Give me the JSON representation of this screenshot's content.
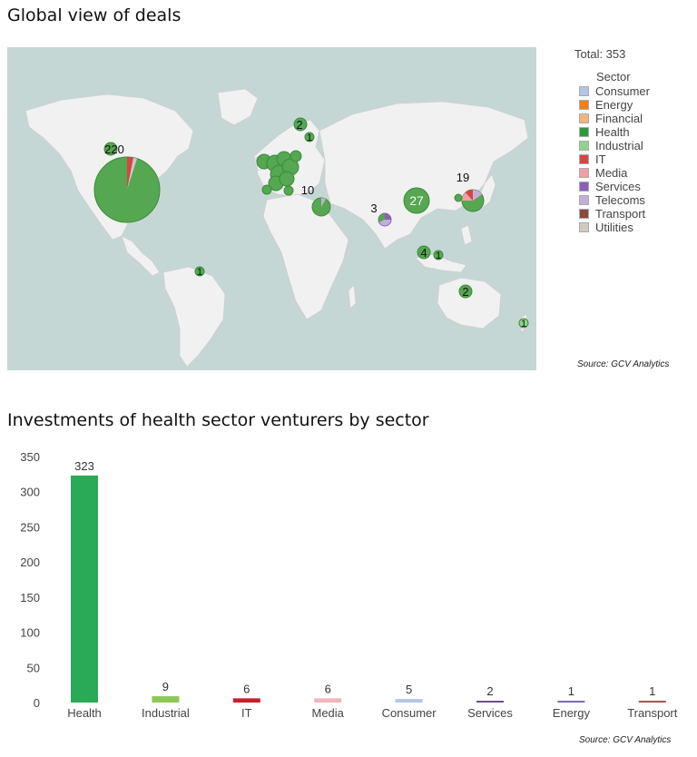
{
  "map": {
    "title": "Global view of deals",
    "total_label": "Total: 353",
    "source": "Source: GCV Analytics",
    "legend": {
      "title": "Sector",
      "items": [
        {
          "label": "Consumer",
          "color": "#b3c6e6"
        },
        {
          "label": "Energy",
          "color": "#f07f1e"
        },
        {
          "label": "Financial",
          "color": "#f2b47a"
        },
        {
          "label": "Health",
          "color": "#2e9a3a"
        },
        {
          "label": "Industrial",
          "color": "#8fd48a"
        },
        {
          "label": "IT",
          "color": "#d94343"
        },
        {
          "label": "Media",
          "color": "#f0a0a5"
        },
        {
          "label": "Services",
          "color": "#8d5fb8"
        },
        {
          "label": "Telecoms",
          "color": "#c3afd6"
        },
        {
          "label": "Transport",
          "color": "#8a4a3c"
        },
        {
          "label": "Utilities",
          "color": "#cfc9c1"
        }
      ]
    },
    "bubbles": [
      {
        "label": "220",
        "count": 220,
        "region": "North America"
      },
      {
        "label": "2",
        "count": 2,
        "region": "Scandinavia"
      },
      {
        "label": "1",
        "count": 1,
        "region": "Finland"
      },
      {
        "label": "10",
        "count": 10,
        "region": "Middle East"
      },
      {
        "label": "27",
        "count": 27,
        "region": "China"
      },
      {
        "label": "3",
        "count": 3,
        "region": "India"
      },
      {
        "label": "19",
        "count": 19,
        "region": "Japan / Korea"
      },
      {
        "label": "4",
        "count": 4,
        "region": "Southeast Asia"
      },
      {
        "label": "1",
        "count": 1,
        "region": "Indonesia"
      },
      {
        "label": "2",
        "count": 2,
        "region": "Australia"
      },
      {
        "label": "1",
        "count": 1,
        "region": "New Zealand"
      },
      {
        "label": "1",
        "count": 1,
        "region": "Brazil"
      }
    ]
  },
  "bar": {
    "title": "Investments of health sector venturers by sector",
    "source": "Source: GCV Analytics"
  },
  "chart_data": {
    "type": "bar",
    "title": "Investments of health sector venturers by sector",
    "categories": [
      "Health",
      "Industrial",
      "IT",
      "Media",
      "Consumer",
      "Services",
      "Energy",
      "Transport"
    ],
    "values": [
      323,
      9,
      6,
      6,
      5,
      2,
      1,
      1
    ],
    "colors": [
      "#2aa957",
      "#8fc85a",
      "#c8202d",
      "#f0b5ba",
      "#b3c6e6",
      "#6b4d8a",
      "#7f68b3",
      "#a0594f"
    ],
    "yticks": [
      0,
      50,
      100,
      150,
      200,
      250,
      300,
      350
    ],
    "ylim": [
      0,
      350
    ],
    "xlabel": "",
    "ylabel": "",
    "grid": false
  }
}
